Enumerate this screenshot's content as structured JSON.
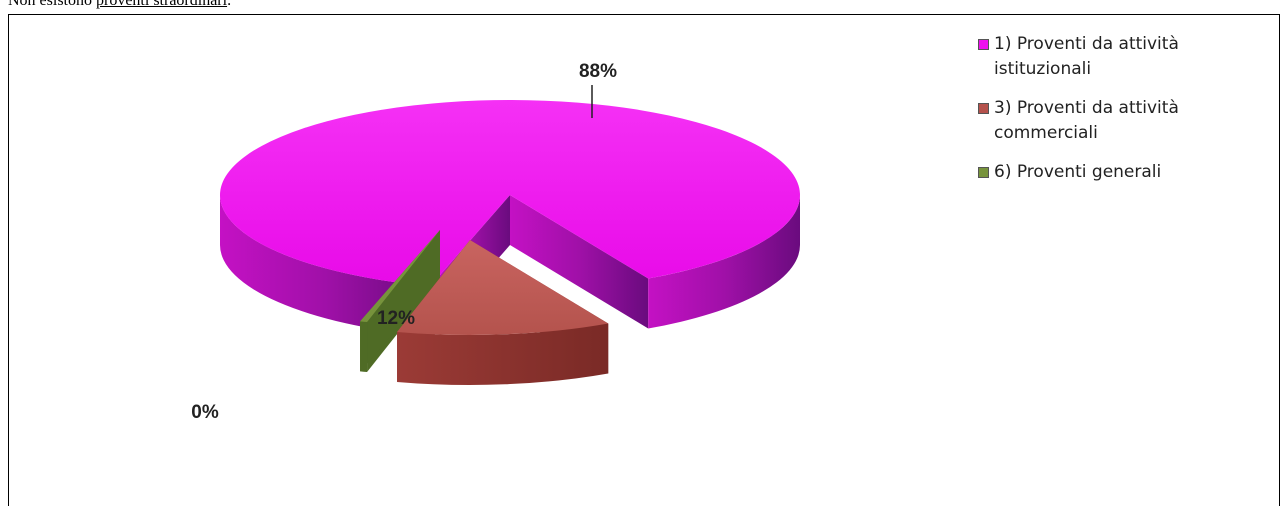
{
  "intro": {
    "prefix": "Non esistono ",
    "link_text": "proventi straordinari",
    "suffix": "."
  },
  "chart_data": {
    "type": "pie",
    "categories": [
      "1) Proventi da attività istituzionali",
      "3) Proventi da attività commerciali",
      "6) Proventi generali"
    ],
    "values": [
      88,
      12,
      0.4
    ],
    "data_labels": [
      "88%",
      "12%",
      "0%"
    ],
    "colors": [
      "#ee10ee",
      "#b5524c",
      "#77933c"
    ],
    "legend_position": "right",
    "three_d": true,
    "exploded": true
  }
}
